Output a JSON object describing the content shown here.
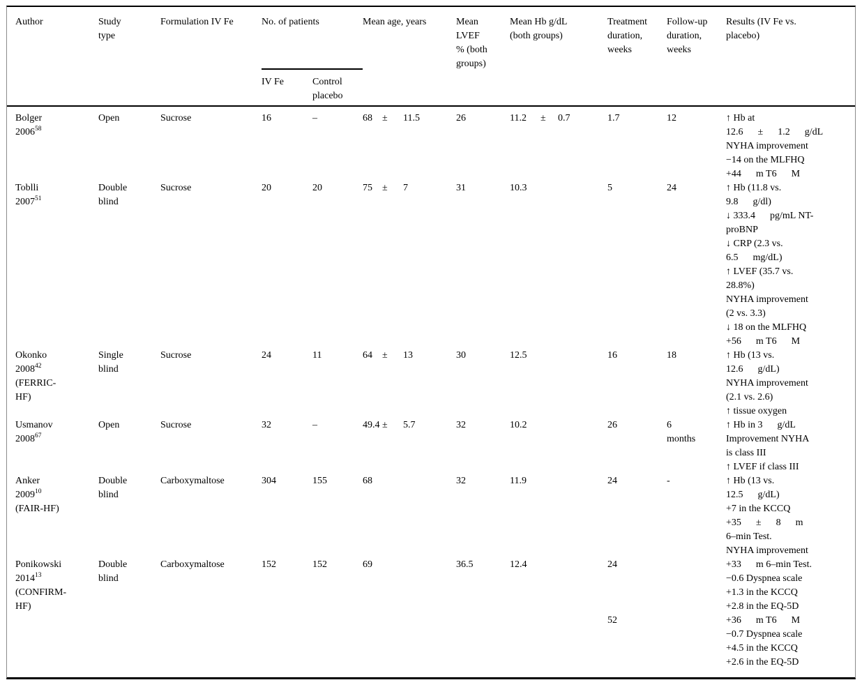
{
  "table": {
    "header": {
      "author": "Author",
      "study_type": "Study\ntype",
      "formulation": "Formulation IV Fe",
      "patients_group": "No. of patients",
      "patients_ivfe": "IV Fe",
      "patients_control": "Control\nplacebo",
      "age": "Mean age, years",
      "lvef": "Mean\nLVEF\n% (both\ngroups)",
      "hb": "Mean Hb g/dL\n(both groups)",
      "treatment": "Treatment\nduration,\nweeks",
      "followup": "Follow-up\nduration,\nweeks",
      "results": "Results (IV Fe vs.\nplacebo)"
    },
    "rows": [
      {
        "segment_first": true,
        "author": {
          "name": "Bolger",
          "year": "2006",
          "sup": "58",
          "extra": ""
        },
        "study": "Open",
        "formulation": "Sucrose",
        "n_ivfe": "16",
        "n_control": "–",
        "age": {
          "mean": "68",
          "pm": "±",
          "sd": "11.5"
        },
        "lvef": "26",
        "hb": {
          "mean": "11.2",
          "pm": "±",
          "sd": "0.7"
        },
        "treatment": "1.7",
        "followup": "12",
        "results": "↑ Hb at\n12.6      ±      1.2      g/dL\nNYHA improvement\n−14 on the MLFHQ\n+44      m T6      M"
      },
      {
        "segment_first": false,
        "author": {
          "name": "Toblli",
          "year": "2007",
          "sup": "51",
          "extra": ""
        },
        "study": "Double\nblind",
        "formulation": "Sucrose",
        "n_ivfe": "20",
        "n_control": "20",
        "age": {
          "mean": "75",
          "pm": "±",
          "sd": "7"
        },
        "lvef": "31",
        "hb": {
          "mean": "10.3",
          "pm": "",
          "sd": ""
        },
        "treatment": "5",
        "followup": "24",
        "results": "↑ Hb (11.8 vs.\n9.8      g/dl)\n↓ 333.4      pg/mL NT-\nproBNP\n↓ CRP (2.3 vs.\n6.5      mg/dL)\n↑ LVEF (35.7 vs.\n28.8%)\nNYHA improvement\n(2 vs. 3.3)\n↓ 18 on the MLFHQ\n+56      m T6      M"
      },
      {
        "segment_first": false,
        "author": {
          "name": "Okonko",
          "year": "2008",
          "sup": "42",
          "extra": "(FERRIC-\nHF)"
        },
        "study": "Single\nblind",
        "formulation": "Sucrose",
        "n_ivfe": "24",
        "n_control": "11",
        "age": {
          "mean": "64",
          "pm": "±",
          "sd": "13"
        },
        "lvef": "30",
        "hb": {
          "mean": "12.5",
          "pm": "",
          "sd": ""
        },
        "treatment": "16",
        "followup": "18",
        "results": "↑ Hb (13 vs.\n12.6      g/dL)\nNYHA improvement\n(2.1 vs. 2.6)\n↑ tissue oxygen"
      },
      {
        "segment_first": false,
        "author": {
          "name": "Usmanov",
          "year": "2008",
          "sup": "67",
          "extra": ""
        },
        "study": "Open",
        "formulation": "Sucrose",
        "n_ivfe": "32",
        "n_control": "–",
        "age": {
          "mean": "49.4",
          "pm": "±",
          "sd": "5.7"
        },
        "lvef": "32",
        "hb": {
          "mean": "10.2",
          "pm": "",
          "sd": ""
        },
        "treatment": "26",
        "followup": "6\nmonths",
        "results": "↑ Hb in 3      g/dL\nImprovement NYHA\nis class III\n↑ LVEF if class III"
      },
      {
        "segment_first": false,
        "author": {
          "name": "Anker",
          "year": "2009",
          "sup": "10",
          "extra": "(FAIR-HF)"
        },
        "study": "Double\nblind",
        "formulation": "Carboxymaltose",
        "n_ivfe": "304",
        "n_control": "155",
        "age": {
          "mean": "68",
          "pm": "",
          "sd": ""
        },
        "lvef": "32",
        "hb": {
          "mean": "11.9",
          "pm": "",
          "sd": ""
        },
        "treatment": "24",
        "followup": "-",
        "results": "↑ Hb (13 vs.\n12.5      g/dL)\n+7 in the KCCQ\n+35      ±      8      m\n6–min Test.\nNYHA improvement"
      },
      {
        "segment_first": false,
        "author": {
          "name": "Ponikowski",
          "year": "2014",
          "sup": "13",
          "extra": "(CONFIRM-\nHF)"
        },
        "study": "Double\nblind",
        "formulation": "Carboxymaltose",
        "n_ivfe": "152",
        "n_control": "152",
        "age": {
          "mean": "69",
          "pm": "",
          "sd": ""
        },
        "lvef": "36.5",
        "hb": {
          "mean": "12.4",
          "pm": "",
          "sd": ""
        },
        "treatment": "24",
        "followup": "",
        "results": "+33      m 6–min Test.\n−0.6 Dyspnea scale\n+1.3 in the KCCQ\n+2.8 in the EQ-5D"
      },
      {
        "segment_first": false,
        "author": {
          "name": "",
          "year": "",
          "sup": "",
          "extra": ""
        },
        "study": "",
        "formulation": "",
        "n_ivfe": "",
        "n_control": "",
        "age": {
          "mean": "",
          "pm": "",
          "sd": ""
        },
        "lvef": "",
        "hb": {
          "mean": "",
          "pm": "",
          "sd": ""
        },
        "treatment": "52",
        "followup": "",
        "results": "+36      m T6      M\n−0.7 Dyspnea scale\n+4.5 in the KCCQ\n+2.6 in the EQ-5D"
      }
    ]
  }
}
